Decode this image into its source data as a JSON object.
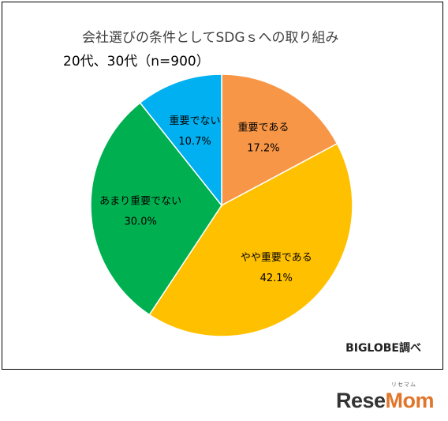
{
  "chart_data": {
    "type": "pie",
    "title": "会社選びの条件としてSDGｓへの取り組み",
    "subtitle": "20代、30代（n=900）",
    "slices": [
      {
        "label": "重要である",
        "value": 17.2,
        "value_label": "17.2%",
        "color": "#f79646"
      },
      {
        "label": "やや重要である",
        "value": 42.1,
        "value_label": "42.1%",
        "color": "#ffc000"
      },
      {
        "label": "あまり重要でない",
        "value": 30.0,
        "value_label": "30.0%",
        "color": "#00b050"
      },
      {
        "label": "重要でない",
        "value": 10.7,
        "value_label": "10.7%",
        "color": "#00b0f0"
      }
    ],
    "start_angle": "12 o'clock",
    "direction": "clockwise",
    "labels_inside": true,
    "annotation": "BIGLOBE調べ"
  },
  "logo": {
    "main_prefix": "Rese",
    "main_suffix": "Mom",
    "small": "リセマム"
  }
}
